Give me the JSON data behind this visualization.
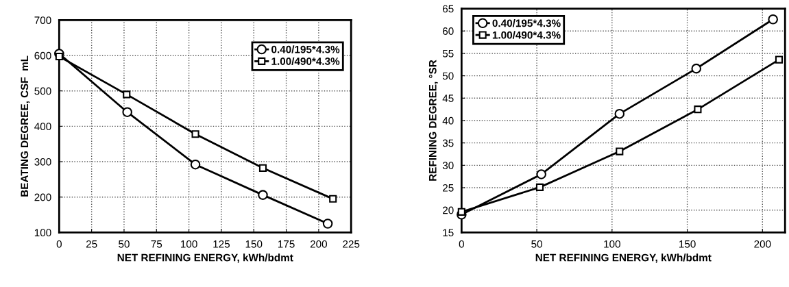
{
  "chart_data": [
    {
      "type": "line",
      "xlabel": "NET REFINING ENERGY, kWh/bdmt",
      "ylabel": "BEATING DEGREE, CSF  mL",
      "xlim": [
        0,
        225
      ],
      "xticks": [
        0,
        25,
        50,
        75,
        100,
        125,
        150,
        175,
        200,
        225
      ],
      "ylim": [
        100,
        700
      ],
      "yticks": [
        100,
        200,
        300,
        400,
        500,
        600,
        700
      ],
      "grid": true,
      "legend": "top right",
      "series": [
        {
          "name": "0.40/195*4.3%",
          "color": "#000000",
          "marker": "circle",
          "x": [
            0,
            52.5,
            105,
            157,
            207
          ],
          "values": [
            605,
            440,
            292,
            206,
            125
          ]
        },
        {
          "name": "1.00/490*4.3%",
          "color": "#000000",
          "marker": "square",
          "x": [
            0,
            52,
            105,
            157,
            211
          ],
          "values": [
            597,
            490,
            378,
            282,
            195
          ]
        }
      ]
    },
    {
      "type": "line",
      "xlabel": "NET REFINING ENERGY, kWh/bdmt",
      "ylabel": "REFINING DEGREE, °SR",
      "xlim": [
        0,
        215
      ],
      "xticks": [
        0,
        50,
        100,
        150,
        200
      ],
      "ylim": [
        15,
        65
      ],
      "yticks": [
        15,
        20,
        25,
        30,
        35,
        40,
        45,
        50,
        55,
        60,
        65
      ],
      "grid": true,
      "legend": "top left",
      "series": [
        {
          "name": "0.40/195*4.3%",
          "color": "#000000",
          "marker": "circle",
          "x": [
            0,
            53,
            105,
            156,
            207
          ],
          "values": [
            19,
            28,
            41.5,
            51.6,
            62.6
          ]
        },
        {
          "name": "1.00/490*4.3%",
          "color": "#000000",
          "marker": "square",
          "x": [
            0,
            52,
            105,
            157,
            211
          ],
          "values": [
            19.6,
            25.1,
            33.1,
            42.5,
            53.6
          ]
        }
      ]
    }
  ]
}
